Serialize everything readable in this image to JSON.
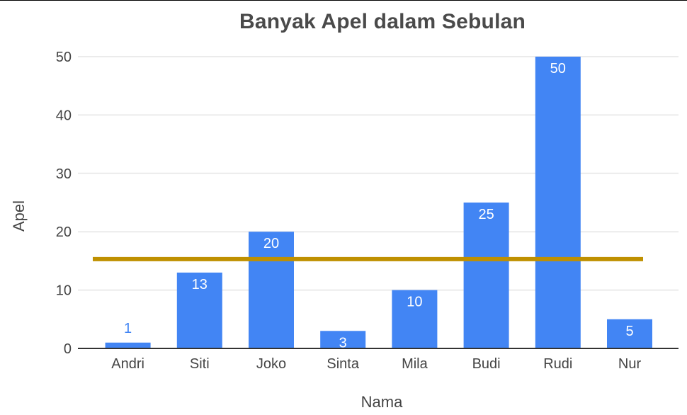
{
  "chart_data": {
    "type": "bar",
    "title": "Banyak Apel dalam Sebulan",
    "xlabel": "Nama",
    "ylabel": "Apel",
    "categories": [
      "Andri",
      "Siti",
      "Joko",
      "Sinta",
      "Mila",
      "Budi",
      "Rudi",
      "Nur"
    ],
    "values": [
      1,
      13,
      20,
      3,
      10,
      25,
      50,
      5
    ],
    "ylim": [
      0,
      50
    ],
    "yticks": [
      0,
      10,
      20,
      30,
      40,
      50
    ],
    "grid": true,
    "legend": "none",
    "reference_line": {
      "value": 15.3,
      "color": "#bf9000"
    },
    "colors": {
      "bar": "#4285f4",
      "label_inside": "#ffffff",
      "label_outside": "#4285f4",
      "grid": "#ebebeb",
      "axis": "#333333"
    }
  }
}
